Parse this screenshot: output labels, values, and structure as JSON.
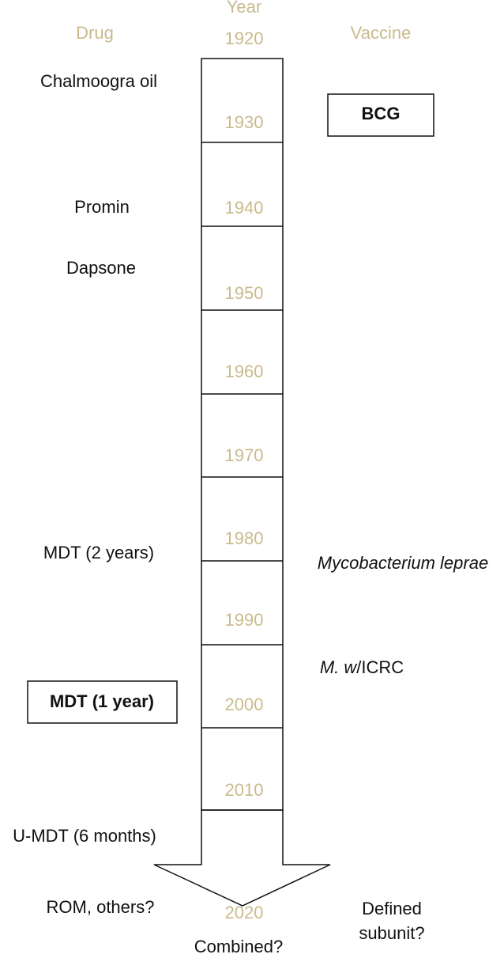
{
  "headers": {
    "drug": "Drug",
    "year": "Year",
    "vaccine": "Vaccine"
  },
  "years": [
    "1920",
    "1930",
    "1940",
    "1950",
    "1960",
    "1970",
    "1980",
    "1990",
    "2000",
    "2010",
    "2020"
  ],
  "drugs": [
    "Chalmoogra oil",
    "Promin",
    "Dapsone",
    "MDT (2 years)",
    "MDT (1 year)",
    "U-MDT (6 months)",
    "ROM, others?"
  ],
  "vaccines": {
    "bcg": "BCG",
    "m_leprae": "Mycobacterium leprae",
    "mw": {
      "italic": "M. w",
      "rest": "/ICRC"
    },
    "defined": [
      "Defined",
      "subunit?"
    ]
  },
  "combined": "Combined?"
}
